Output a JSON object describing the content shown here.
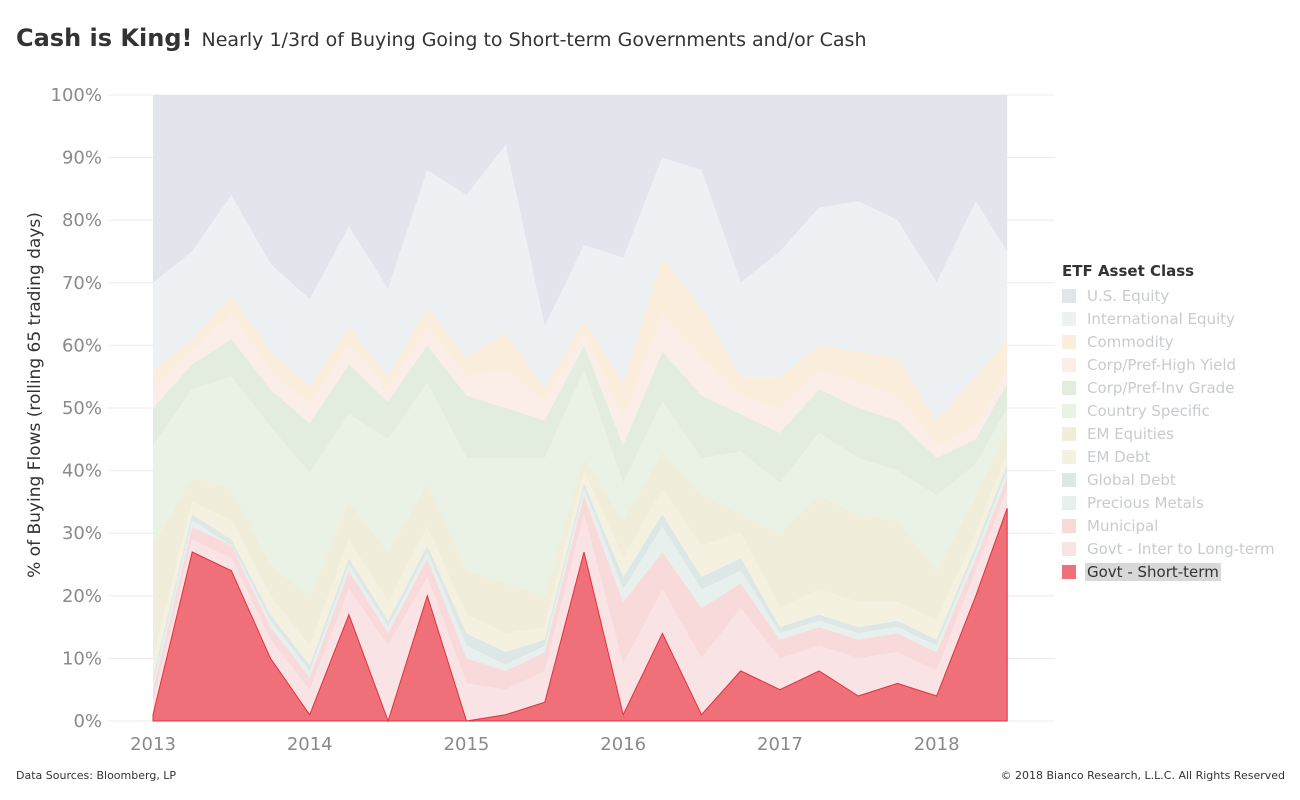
{
  "title": {
    "main": "Cash is King!",
    "subtitle": "Nearly 1/3rd of Buying Going to Short-term Governments and/or Cash"
  },
  "footer": {
    "source": "Data Sources: Bloomberg, LP",
    "copyright": "© 2018 Bianco Research, L.L.C. All Rights Reserved"
  },
  "legend": {
    "title": "ETF Asset Class",
    "highlighted": "Govt - Short-term"
  },
  "chart_data": {
    "type": "area",
    "stacked": true,
    "normalized_to": 100,
    "ylabel": "% of Buying Flows (rolling 65 trading days)",
    "xlabel": "",
    "y_ticks": [
      "0%",
      "10%",
      "20%",
      "30%",
      "40%",
      "50%",
      "60%",
      "70%",
      "80%",
      "90%",
      "100%"
    ],
    "ylim": [
      0,
      100
    ],
    "x_ticks": [
      "2013",
      "2014",
      "2015",
      "2016",
      "2017",
      "2018"
    ],
    "xlim": [
      2013.0,
      2018.5
    ],
    "grid": "horizontal",
    "legend_position": "right",
    "x": [
      2013.0,
      2013.25,
      2013.5,
      2013.75,
      2014.0,
      2014.25,
      2014.5,
      2014.75,
      2015.0,
      2015.25,
      2015.5,
      2015.75,
      2016.0,
      2016.25,
      2016.5,
      2016.75,
      2017.0,
      2017.25,
      2017.5,
      2017.75,
      2018.0,
      2018.25,
      2018.45
    ],
    "series": [
      {
        "name": "Govt - Short-term",
        "color": "#f07079",
        "values": [
          1,
          27,
          24,
          10,
          1,
          17,
          0,
          20,
          0,
          1,
          3,
          27,
          1,
          14,
          1,
          8,
          5,
          8,
          4,
          6,
          4,
          20,
          34
        ]
      },
      {
        "name": "Govt - Inter to Long-term",
        "color": "#fae3e4",
        "values": [
          2,
          2,
          2,
          3,
          4,
          4,
          12,
          3,
          6,
          4,
          5,
          6,
          8,
          7,
          9,
          10,
          5,
          4,
          6,
          5,
          4,
          4,
          3
        ]
      },
      {
        "name": "Municipal",
        "color": "#f8dadb",
        "values": [
          2,
          2,
          2,
          2,
          2,
          3,
          2,
          3,
          4,
          3,
          3,
          3,
          10,
          6,
          8,
          4,
          3,
          3,
          3,
          3,
          3,
          2,
          2
        ]
      },
      {
        "name": "Precious Metals",
        "color": "#e8f0ee",
        "values": [
          1,
          1,
          0,
          1,
          1,
          1,
          1,
          1,
          2,
          1,
          1,
          1,
          2,
          4,
          3,
          2,
          1,
          1,
          1,
          1,
          1,
          1,
          1
        ]
      },
      {
        "name": "Global Debt",
        "color": "#dde8e6",
        "values": [
          1,
          1,
          1,
          1,
          1,
          1,
          1,
          1,
          2,
          2,
          1,
          1,
          2,
          2,
          2,
          2,
          1,
          1,
          1,
          1,
          1,
          1,
          1
        ]
      },
      {
        "name": "EM Debt",
        "color": "#f4f1e0",
        "values": [
          3,
          2,
          3,
          3,
          3,
          3,
          3,
          3,
          3,
          3,
          2,
          2,
          3,
          4,
          5,
          4,
          3,
          4,
          4,
          3,
          3,
          2,
          2
        ]
      },
      {
        "name": "EM Equities",
        "color": "#f0eddb",
        "values": [
          18,
          4,
          5,
          5,
          8,
          6,
          8,
          7,
          7,
          8,
          5,
          2,
          6,
          6,
          8,
          3,
          12,
          15,
          14,
          13,
          8,
          6,
          4
        ]
      },
      {
        "name": "Country Specific",
        "color": "#e9f2e4",
        "values": [
          16,
          14,
          18,
          22,
          20,
          14,
          18,
          16,
          18,
          20,
          22,
          14,
          6,
          8,
          6,
          10,
          8,
          10,
          9,
          8,
          12,
          5,
          3
        ]
      },
      {
        "name": "Corp/Pref-Inv Grade",
        "color": "#e2eddf",
        "values": [
          6,
          4,
          6,
          6,
          8,
          8,
          6,
          6,
          10,
          8,
          6,
          4,
          6,
          8,
          10,
          6,
          8,
          7,
          8,
          8,
          6,
          4,
          4
        ]
      },
      {
        "name": "Corp/Pref-High Yield",
        "color": "#fbede7",
        "values": [
          3,
          2,
          4,
          3,
          3,
          3,
          2,
          3,
          3,
          6,
          3,
          2,
          4,
          6,
          6,
          3,
          4,
          3,
          4,
          4,
          2,
          2,
          2
        ]
      },
      {
        "name": "Commodity",
        "color": "#fbeedd",
        "values": [
          3,
          2,
          3,
          3,
          3,
          3,
          2,
          3,
          3,
          6,
          2,
          2,
          6,
          9,
          8,
          3,
          5,
          4,
          5,
          6,
          4,
          8,
          5
        ]
      },
      {
        "name": "International Equity",
        "color": "#edf1f4",
        "values": [
          14,
          14,
          16,
          14,
          14,
          16,
          14,
          22,
          26,
          30,
          10,
          12,
          20,
          16,
          22,
          15,
          20,
          22,
          24,
          22,
          22,
          28,
          14
        ]
      },
      {
        "name": "U.S. Equity",
        "color": "#e2e6ec",
        "values": [
          30,
          25,
          16,
          27,
          33,
          21,
          31,
          12,
          16,
          8,
          37,
          24,
          26,
          10,
          12,
          30,
          25,
          18,
          17,
          20,
          30,
          17,
          25
        ]
      }
    ]
  }
}
